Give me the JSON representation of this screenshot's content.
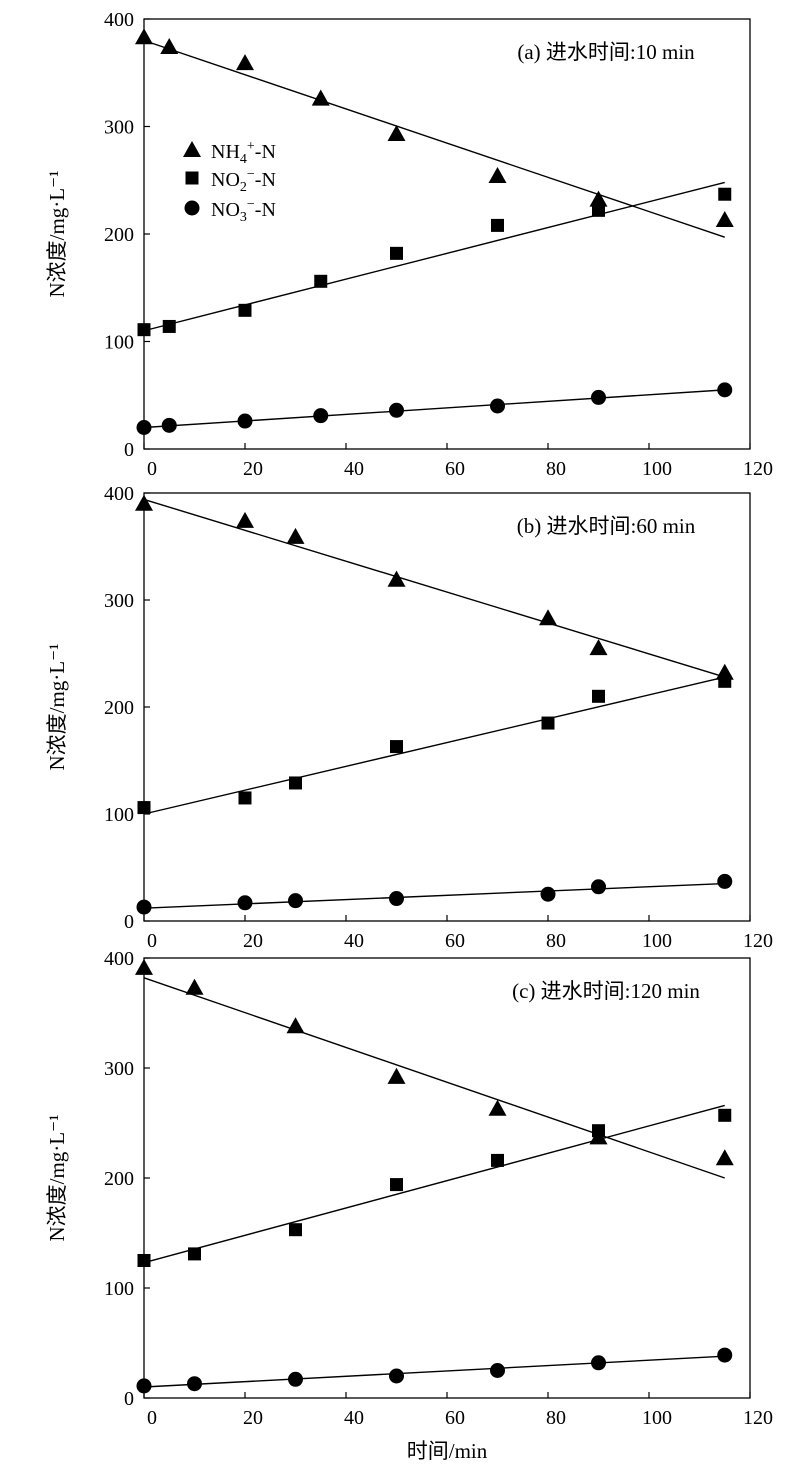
{
  "xlabel": "时间/min",
  "legend": {
    "entries": [
      {
        "marker": "triangle",
        "label": "NH4+-N",
        "base": "NH",
        "sub": "4",
        "sup": "+",
        "tail": "-N"
      },
      {
        "marker": "square",
        "label": "NO2−-N",
        "base": "NO",
        "sub": "2",
        "sup": "−",
        "tail": "-N"
      },
      {
        "marker": "circle",
        "label": "NO3−-N",
        "base": "NO",
        "sub": "3",
        "sup": "−",
        "tail": "-N"
      }
    ]
  },
  "chart_data": [
    {
      "type": "scatter",
      "panel": "a",
      "title": "(a) 进水时间:10 min",
      "xlabel": "",
      "ylabel": "N浓度/mg·L⁻¹",
      "xlim": [
        0,
        120
      ],
      "ylim": [
        0,
        400
      ],
      "xticks": [
        0,
        20,
        40,
        60,
        80,
        100,
        120
      ],
      "yticks": [
        0,
        100,
        200,
        300,
        400
      ],
      "grid": false,
      "legend_position": "upper-left",
      "series": [
        {
          "name": "NH4+-N",
          "marker": "triangle",
          "x": [
            0,
            5,
            20,
            35,
            50,
            70,
            90,
            115
          ],
          "y": [
            383,
            374,
            359,
            326,
            293,
            254,
            232,
            213
          ],
          "fit_line": {
            "x": [
              0,
              115
            ],
            "y": [
              380,
              197
            ]
          }
        },
        {
          "name": "NO2−-N",
          "marker": "square",
          "x": [
            0,
            5,
            20,
            35,
            50,
            70,
            90,
            115
          ],
          "y": [
            111,
            114,
            129,
            156,
            182,
            208,
            222,
            237
          ],
          "fit_line": {
            "x": [
              0,
              115
            ],
            "y": [
              110,
              248
            ]
          }
        },
        {
          "name": "NO3−-N",
          "marker": "circle",
          "x": [
            0,
            5,
            20,
            35,
            50,
            70,
            90,
            115
          ],
          "y": [
            20,
            22,
            26,
            31,
            36,
            40,
            48,
            55
          ],
          "fit_line": {
            "x": [
              0,
              115
            ],
            "y": [
              20,
              55
            ]
          }
        }
      ]
    },
    {
      "type": "scatter",
      "panel": "b",
      "title": "(b) 进水时间:60 min",
      "xlabel": "",
      "ylabel": "N浓度/mg·L⁻¹",
      "xlim": [
        0,
        120
      ],
      "ylim": [
        0,
        400
      ],
      "xticks": [
        0,
        20,
        40,
        60,
        80,
        100,
        120
      ],
      "yticks": [
        0,
        100,
        200,
        300,
        400
      ],
      "grid": false,
      "series": [
        {
          "name": "NH4+-N",
          "marker": "triangle",
          "x": [
            0,
            20,
            30,
            50,
            80,
            90,
            115
          ],
          "y": [
            390,
            374,
            359,
            319,
            283,
            255,
            232
          ],
          "fit_line": {
            "x": [
              0,
              115
            ],
            "y": [
              394,
              228
            ]
          }
        },
        {
          "name": "NO2−-N",
          "marker": "square",
          "x": [
            0,
            20,
            30,
            50,
            80,
            90,
            115
          ],
          "y": [
            106,
            115,
            129,
            163,
            185,
            210,
            224
          ],
          "fit_line": {
            "x": [
              0,
              115
            ],
            "y": [
              100,
              228
            ]
          }
        },
        {
          "name": "NO3−-N",
          "marker": "circle",
          "x": [
            0,
            20,
            30,
            50,
            80,
            90,
            115
          ],
          "y": [
            13,
            17,
            19,
            21,
            25,
            32,
            37
          ],
          "fit_line": {
            "x": [
              0,
              115
            ],
            "y": [
              12,
              35
            ]
          }
        }
      ]
    },
    {
      "type": "scatter",
      "panel": "c",
      "title": "(c) 进水时间:120 min",
      "xlabel": "时间/min",
      "ylabel": "N浓度/mg·L⁻¹",
      "xlim": [
        0,
        120
      ],
      "ylim": [
        0,
        400
      ],
      "xticks": [
        0,
        20,
        40,
        60,
        80,
        100,
        120
      ],
      "yticks": [
        0,
        100,
        200,
        300,
        400
      ],
      "grid": false,
      "series": [
        {
          "name": "NH4+-N",
          "marker": "triangle",
          "x": [
            0,
            10,
            30,
            50,
            70,
            90,
            115
          ],
          "y": [
            391,
            373,
            338,
            292,
            263,
            237,
            218
          ],
          "fit_line": {
            "x": [
              0,
              115
            ],
            "y": [
              382,
              200
            ]
          }
        },
        {
          "name": "NO2−-N",
          "marker": "square",
          "x": [
            0,
            10,
            30,
            50,
            70,
            90,
            115
          ],
          "y": [
            125,
            131,
            153,
            194,
            216,
            243,
            257
          ],
          "fit_line": {
            "x": [
              0,
              115
            ],
            "y": [
              123,
              266
            ]
          }
        },
        {
          "name": "NO3−-N",
          "marker": "circle",
          "x": [
            0,
            10,
            30,
            50,
            70,
            90,
            115
          ],
          "y": [
            11,
            13,
            17,
            20,
            25,
            32,
            39
          ],
          "fit_line": {
            "x": [
              0,
              115
            ],
            "y": [
              10,
              38
            ]
          }
        }
      ]
    }
  ]
}
